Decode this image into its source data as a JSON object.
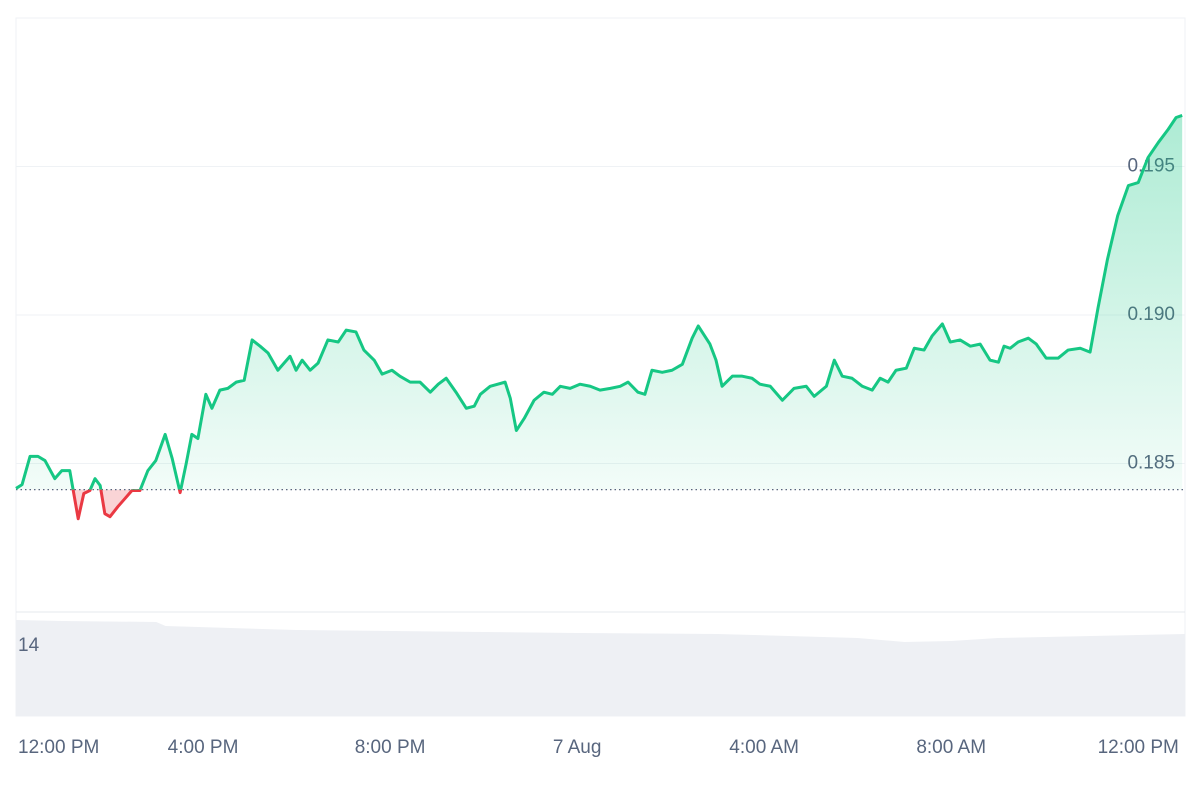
{
  "chart_data": {
    "type": "line",
    "color": "#16c784",
    "down_color": "#ea3943",
    "baseline": 0.18412,
    "x": [
      0,
      0.13,
      0.3,
      0.47,
      0.62,
      0.83,
      0.98,
      1.15,
      1.33,
      1.45,
      1.58,
      1.69,
      1.8,
      1.9,
      2.01,
      2.18,
      2.33,
      2.48,
      2.65,
      2.82,
      2.99,
      3.19,
      3.34,
      3.51,
      3.64,
      3.76,
      3.89,
      4.06,
      4.19,
      4.36,
      4.53,
      4.71,
      4.88,
      5.05,
      5.22,
      5.39,
      5.6,
      5.86,
      5.99,
      6.12,
      6.29,
      6.46,
      6.67,
      6.89,
      7.06,
      7.27,
      7.44,
      7.66,
      7.83,
      8.04,
      8.21,
      8.43,
      8.64,
      8.86,
      9.03,
      9.2,
      9.41,
      9.63,
      9.8,
      9.93,
      10.14,
      10.46,
      10.57,
      10.7,
      10.87,
      11.08,
      11.29,
      11.47,
      11.64,
      11.85,
      12.06,
      12.28,
      12.49,
      12.71,
      12.92,
      13.09,
      13.3,
      13.45,
      13.6,
      13.82,
      14.03,
      14.25,
      14.46,
      14.59,
      14.84,
      14.97,
      15.1,
      15.32,
      15.53,
      15.74,
      15.91,
      16.13,
      16.39,
      16.64,
      16.9,
      17.07,
      17.33,
      17.5,
      17.67,
      17.88,
      18.1,
      18.31,
      18.48,
      18.65,
      18.82,
      19.04,
      19.21,
      19.42,
      19.59,
      19.81,
      19.98,
      20.19,
      20.41,
      20.62,
      20.83,
      21.01,
      21.13,
      21.26,
      21.43,
      21.65,
      21.82,
      22.03,
      22.29,
      22.5,
      22.76,
      22.97,
      23.14,
      23.34,
      23.56,
      23.79,
      24.0,
      24.21,
      24.43,
      24.64,
      24.81,
      24.94
    ],
    "values": [
      0.18416,
      0.18429,
      0.18524,
      0.18524,
      0.1851,
      0.18449,
      0.18476,
      0.18476,
      0.18314,
      0.18399,
      0.18409,
      0.18449,
      0.18426,
      0.18331,
      0.18321,
      0.18355,
      0.18382,
      0.18409,
      0.18409,
      0.18476,
      0.1851,
      0.18598,
      0.18517,
      0.18402,
      0.185,
      0.18598,
      0.18584,
      0.18733,
      0.18686,
      0.18747,
      0.18753,
      0.18774,
      0.1878,
      0.18916,
      0.18895,
      0.18872,
      0.18814,
      0.18861,
      0.18814,
      0.18848,
      0.18814,
      0.18838,
      0.18916,
      0.18909,
      0.18949,
      0.18943,
      0.18882,
      0.18848,
      0.18801,
      0.18814,
      0.18794,
      0.18774,
      0.18774,
      0.1874,
      0.18767,
      0.18787,
      0.1874,
      0.18686,
      0.18693,
      0.18733,
      0.1876,
      0.18774,
      0.1872,
      0.18611,
      0.18652,
      0.18713,
      0.1874,
      0.18733,
      0.1876,
      0.18753,
      0.18767,
      0.1876,
      0.18747,
      0.18753,
      0.1876,
      0.18774,
      0.1874,
      0.18733,
      0.18814,
      0.18807,
      0.18814,
      0.18834,
      0.18922,
      0.18963,
      0.18902,
      0.18848,
      0.1876,
      0.18794,
      0.18794,
      0.18787,
      0.18767,
      0.1876,
      0.18713,
      0.18753,
      0.1876,
      0.18726,
      0.1876,
      0.18848,
      0.18794,
      0.18787,
      0.1876,
      0.18747,
      0.18787,
      0.18774,
      0.18814,
      0.18821,
      0.18888,
      0.18882,
      0.18929,
      0.1897,
      0.18909,
      0.18916,
      0.18895,
      0.18902,
      0.18848,
      0.18841,
      0.18895,
      0.18888,
      0.18909,
      0.18922,
      0.18902,
      0.18855,
      0.18855,
      0.18882,
      0.18888,
      0.18875,
      0.19024,
      0.19186,
      0.19334,
      0.19436,
      0.19446,
      0.1953,
      0.19581,
      0.19625,
      0.19665,
      0.19672
    ],
    "xlim": [
      0,
      25
    ],
    "xticks": [
      {
        "value": 0,
        "label": "12:00 PM"
      },
      {
        "value": 4,
        "label": "4:00 PM"
      },
      {
        "value": 8,
        "label": "8:00 PM"
      },
      {
        "value": 12,
        "label": "7 Aug"
      },
      {
        "value": 16,
        "label": "4:00 AM"
      },
      {
        "value": 20,
        "label": "8:00 AM"
      },
      {
        "value": 24,
        "label": "12:00 PM"
      }
    ],
    "ylim": [
      0.18,
      0.2
    ],
    "yticks": [
      0.185,
      {
        "value": 0.19,
        "label": "0.190"
      },
      0.195
    ],
    "grid": true,
    "volume": {
      "color": "#eef0f4",
      "x": [
        0,
        1,
        3,
        3.2,
        6,
        10,
        12,
        15,
        18,
        19,
        20,
        21,
        23,
        25
      ],
      "values": [
        19.2,
        19,
        18.8,
        18,
        17.2,
        16.8,
        16.6,
        16.4,
        15.6,
        14.8,
        15,
        15.6,
        16,
        16.4
      ],
      "ylim": [
        0,
        20.8
      ],
      "yticks": [
        14
      ]
    }
  }
}
